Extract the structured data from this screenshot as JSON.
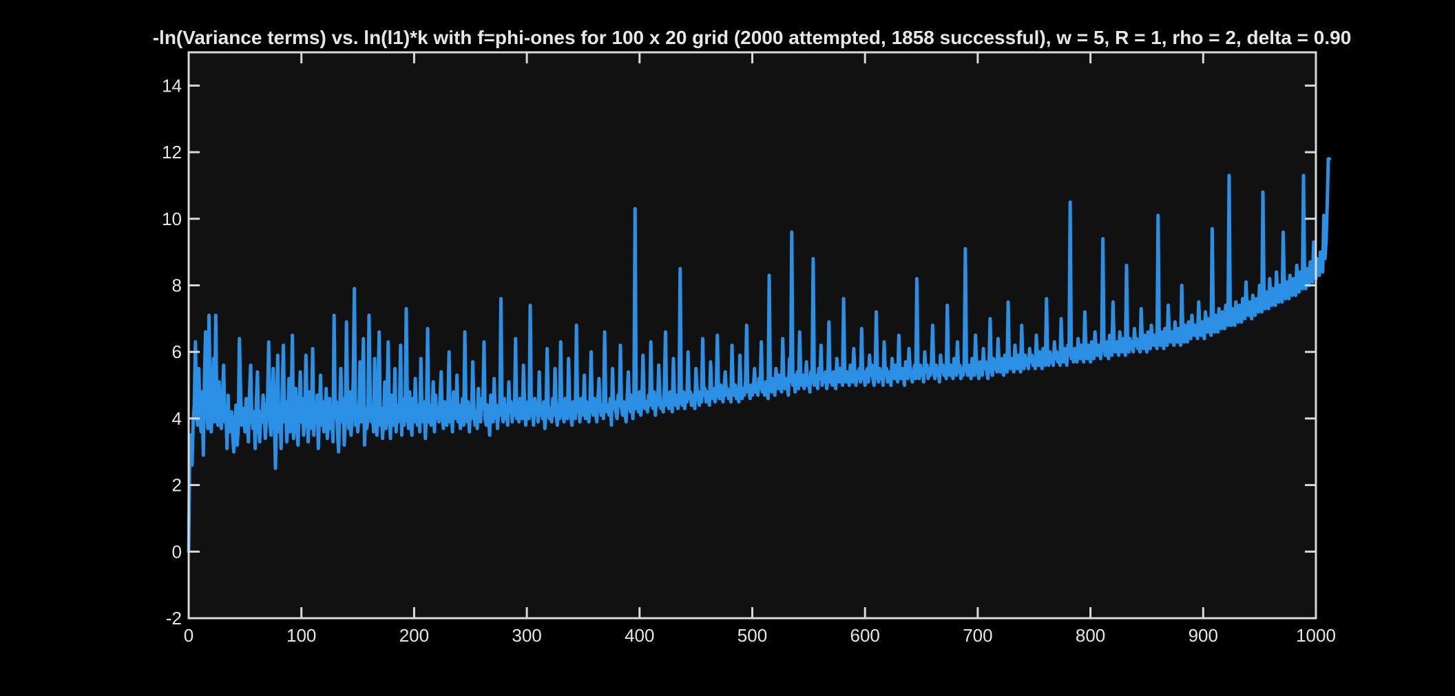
{
  "chart_data": {
    "type": "line",
    "title": "-ln(Variance terms) vs. ln(l1)*k with f=phi-ones for 100 x 20 grid (2000 attempted, 1858 successful), w = 5, R = 1, rho = 2, delta = 0.90",
    "xlabel": "",
    "ylabel": "",
    "xlim": [
      0,
      1000
    ],
    "ylim": [
      -2,
      15
    ],
    "x_ticks": [
      0,
      100,
      200,
      300,
      400,
      500,
      600,
      700,
      800,
      900,
      1000
    ],
    "y_ticks": [
      -2,
      0,
      2,
      4,
      6,
      8,
      10,
      12,
      14
    ],
    "grid": false,
    "legend": "none",
    "colors": {
      "page_background": "#000000",
      "plot_background": "#111111",
      "axes": "#d9d9d9",
      "text": "#e6e6e6",
      "series": "#2b8fe3"
    },
    "series": [
      {
        "name": "",
        "x_start": 0,
        "x_step": 1,
        "note": "",
        "values": [
          0.0,
          3.2,
          3.5,
          2.6,
          3.9,
          4.4,
          6.3,
          4.1,
          3.8,
          5.5,
          4.0,
          3.6,
          4.8,
          2.9,
          5.2,
          6.6,
          4.3,
          3.7,
          7.1,
          4.9,
          3.6,
          4.4,
          5.8,
          3.9,
          7.1,
          4.2,
          3.8,
          5.1,
          4.0,
          3.7,
          4.6,
          5.6,
          3.9,
          4.3,
          3.1,
          4.7,
          3.6,
          3.9,
          4.2,
          3.5,
          3.0,
          3.9,
          4.4,
          3.2,
          3.7,
          6.4,
          4.9,
          3.8,
          4.3,
          4.1,
          3.6,
          4.6,
          3.9,
          3.3,
          4.8,
          5.6,
          4.0,
          3.7,
          4.2,
          3.1,
          4.5,
          5.4,
          3.8,
          3.3,
          4.2,
          3.9,
          4.7,
          4.3,
          3.4,
          4.0,
          4.6,
          6.3,
          3.9,
          3.5,
          4.4,
          5.5,
          4.1,
          2.5,
          4.2,
          5.9,
          3.6,
          4.4,
          3.1,
          4.8,
          6.2,
          3.9,
          4.5,
          3.3,
          4.0,
          5.2,
          3.6,
          4.4,
          6.5,
          3.4,
          4.1,
          4.9,
          3.7,
          3.2,
          4.3,
          5.4,
          3.9,
          4.6,
          3.5,
          4.0,
          5.9,
          4.4,
          3.3,
          4.8,
          3.7,
          4.2,
          6.1,
          3.5,
          4.3,
          3.9,
          4.7,
          3.1,
          4.1,
          5.3,
          3.8,
          4.5,
          3.6,
          4.0,
          4.9,
          3.4,
          3.9,
          4.6,
          3.7,
          4.2,
          3.3,
          7.1,
          4.0,
          4.5,
          3.6,
          3.0,
          4.3,
          5.5,
          3.9,
          4.6,
          3.2,
          4.1,
          6.9,
          4.3,
          3.7,
          4.8,
          3.5,
          4.0,
          5.2,
          7.9,
          3.8,
          4.4,
          3.6,
          4.1,
          5.7,
          3.9,
          4.6,
          6.4,
          3.2,
          4.3,
          3.7,
          4.0,
          7.1,
          4.7,
          3.9,
          4.4,
          3.6,
          5.8,
          4.1,
          3.5,
          4.9,
          6.6,
          3.8,
          4.3,
          3.4,
          4.0,
          5.1,
          3.7,
          4.5,
          6.3,
          4.0,
          3.4,
          4.7,
          3.8,
          4.2,
          5.5,
          3.6,
          4.4,
          3.9,
          4.1,
          6.2,
          3.5,
          4.6,
          3.8,
          4.0,
          7.3,
          4.3,
          3.7,
          4.8,
          4.1,
          3.5,
          4.6,
          3.9,
          5.2,
          4.2,
          3.8,
          4.4,
          3.6,
          5.8,
          4.1,
          3.9,
          4.5,
          3.4,
          4.3,
          6.7,
          3.9,
          4.4,
          3.8,
          4.2,
          5.1,
          3.6,
          4.7,
          4.0,
          4.3,
          3.9,
          4.6,
          5.4,
          4.0,
          3.7,
          4.5,
          4.1,
          3.8,
          4.4,
          6.0,
          3.9,
          4.3,
          3.6,
          4.8,
          4.2,
          4.0,
          5.3,
          3.9,
          4.4,
          3.7,
          4.1,
          4.6,
          3.8,
          6.6,
          4.2,
          3.9,
          4.5,
          3.6,
          4.3,
          4.0,
          5.7,
          4.4,
          3.8,
          4.2,
          3.7,
          4.9,
          4.1,
          3.9,
          4.6,
          4.3,
          6.3,
          4.0,
          3.8,
          4.4,
          4.1,
          3.5,
          4.7,
          4.2,
          3.9,
          5.2,
          4.0,
          4.4,
          3.7,
          4.3,
          4.1,
          7.6,
          4.2,
          3.9,
          4.6,
          4.0,
          4.3,
          3.8,
          5.1,
          4.2,
          4.5,
          3.9,
          4.4,
          4.1,
          6.4,
          4.0,
          4.3,
          3.9,
          4.6,
          4.2,
          4.0,
          5.6,
          4.4,
          3.8,
          4.2,
          4.5,
          4.0,
          7.4,
          4.1,
          4.3,
          3.8,
          4.6,
          4.2,
          4.4,
          3.9,
          5.4,
          4.1,
          4.3,
          4.0,
          4.5,
          3.7,
          4.2,
          6.1,
          4.4,
          4.0,
          4.3,
          3.9,
          4.6,
          4.1,
          5.5,
          4.2,
          3.8,
          4.4,
          4.0,
          6.3,
          4.3,
          4.1,
          3.9,
          4.6,
          4.2,
          4.0,
          5.8,
          4.4,
          4.1,
          3.8,
          4.5,
          4.3,
          4.0,
          6.8,
          4.2,
          4.4,
          3.9,
          4.6,
          4.1,
          4.3,
          5.3,
          4.0,
          4.5,
          4.2,
          3.9,
          4.4,
          6.0,
          4.3,
          4.1,
          4.6,
          4.2,
          3.9,
          4.5,
          5.2,
          4.3,
          4.1,
          4.4,
          4.0,
          6.6,
          4.5,
          4.2,
          4.4,
          4.1,
          4.6,
          3.8,
          5.5,
          4.3,
          4.5,
          4.2,
          4.0,
          4.7,
          4.4,
          6.2,
          4.3,
          4.1,
          4.5,
          4.2,
          3.9,
          4.6,
          5.4,
          4.4,
          4.2,
          4.7,
          4.0,
          4.5,
          10.3,
          4.3,
          4.6,
          4.2,
          4.8,
          4.1,
          4.4,
          5.9,
          4.6,
          4.3,
          4.5,
          4.2,
          4.7,
          4.4,
          6.3,
          4.5,
          4.3,
          4.8,
          4.1,
          4.6,
          4.4,
          5.6,
          4.7,
          4.3,
          4.5,
          4.2,
          4.9,
          6.6,
          4.4,
          4.6,
          4.3,
          4.8,
          4.5,
          4.2,
          5.8,
          4.6,
          4.4,
          4.7,
          4.3,
          4.5,
          8.5,
          4.6,
          4.4,
          4.8,
          4.3,
          4.7,
          4.5,
          6.0,
          4.6,
          4.8,
          4.4,
          4.7,
          4.5,
          4.3,
          5.5,
          4.9,
          4.6,
          4.4,
          4.8,
          4.5,
          6.4,
          4.7,
          4.9,
          4.5,
          4.8,
          4.6,
          4.4,
          5.7,
          4.8,
          4.6,
          4.9,
          4.5,
          4.7,
          6.5,
          4.8,
          4.6,
          5.0,
          4.7,
          4.5,
          4.9,
          5.4,
          4.7,
          4.9,
          4.6,
          4.8,
          4.5,
          6.2,
          4.9,
          4.7,
          5.0,
          4.6,
          4.8,
          4.5,
          5.9,
          4.8,
          4.6,
          4.9,
          4.7,
          5.1,
          6.8,
          4.8,
          4.9,
          4.6,
          5.0,
          4.7,
          4.9,
          5.5,
          4.8,
          5.0,
          4.7,
          5.2,
          4.9,
          6.3,
          4.8,
          5.0,
          4.7,
          5.1,
          4.9,
          4.6,
          8.3,
          5.0,
          4.8,
          5.2,
          4.9,
          4.7,
          5.5,
          5.1,
          4.9,
          5.3,
          5.0,
          4.8,
          6.4,
          5.1,
          4.9,
          5.2,
          5.0,
          4.7,
          5.8,
          5.1,
          9.6,
          5.0,
          5.3,
          4.8,
          5.1,
          5.4,
          4.9,
          6.6,
          5.2,
          5.0,
          5.3,
          4.9,
          5.1,
          5.7,
          5.0,
          5.2,
          4.8,
          5.4,
          5.1,
          8.8,
          5.0,
          5.3,
          5.1,
          4.9,
          5.5,
          5.2,
          6.2,
          5.0,
          5.3,
          5.1,
          5.4,
          4.9,
          5.2,
          6.9,
          5.1,
          5.3,
          5.0,
          5.4,
          5.2,
          4.9,
          5.8,
          5.3,
          5.1,
          5.5,
          5.2,
          5.0,
          7.6,
          5.3,
          5.1,
          5.4,
          5.2,
          5.0,
          5.6,
          5.3,
          5.1,
          6.1,
          5.3,
          5.0,
          5.4,
          5.2,
          5.5,
          5.1,
          6.7,
          5.2,
          5.4,
          5.0,
          5.3,
          5.5,
          5.1,
          5.9,
          5.3,
          5.6,
          5.2,
          5.0,
          5.4,
          7.2,
          5.3,
          5.1,
          5.5,
          5.2,
          5.4,
          5.0,
          6.3,
          5.3,
          5.5,
          5.1,
          5.4,
          5.2,
          5.0,
          5.8,
          5.4,
          5.2,
          5.6,
          5.3,
          5.1,
          6.5,
          5.4,
          5.2,
          5.5,
          5.3,
          5.0,
          5.7,
          5.4,
          5.2,
          6.1,
          5.5,
          5.3,
          5.1,
          5.4,
          5.6,
          5.2,
          8.2,
          5.4,
          5.2,
          5.6,
          5.3,
          5.5,
          5.1,
          6.0,
          5.4,
          5.6,
          5.2,
          5.5,
          5.3,
          5.7,
          6.8,
          5.4,
          5.2,
          5.6,
          5.3,
          5.5,
          5.1,
          5.9,
          5.4,
          5.6,
          5.3,
          5.5,
          5.2,
          7.4,
          5.5,
          5.3,
          5.6,
          5.4,
          5.2,
          5.8,
          5.5,
          5.3,
          6.3,
          5.4,
          5.6,
          5.2,
          5.5,
          5.3,
          5.7,
          9.1,
          5.5,
          5.3,
          5.6,
          5.4,
          5.2,
          5.8,
          5.5,
          5.3,
          6.5,
          5.6,
          5.4,
          5.2,
          5.7,
          5.5,
          5.3,
          6.1,
          5.5,
          5.7,
          5.4,
          5.2,
          5.6,
          7.0,
          5.5,
          5.3,
          5.8,
          5.5,
          5.7,
          5.4,
          6.4,
          5.6,
          5.4,
          5.8,
          5.5,
          5.3,
          5.9,
          5.6,
          5.4,
          7.5,
          5.7,
          5.5,
          5.8,
          5.6,
          5.4,
          6.2,
          5.7,
          5.5,
          5.9,
          5.6,
          5.4,
          6.8,
          5.7,
          5.5,
          5.9,
          5.6,
          5.8,
          5.5,
          6.1,
          5.7,
          5.9,
          5.6,
          5.8,
          5.5,
          6.5,
          5.8,
          5.6,
          6.0,
          5.7,
          5.5,
          6.1,
          5.8,
          5.6,
          7.6,
          5.8,
          5.6,
          6.0,
          5.7,
          5.9,
          5.6,
          6.3,
          5.8,
          6.0,
          5.7,
          5.9,
          5.6,
          7.0,
          5.9,
          5.7,
          6.1,
          5.8,
          5.6,
          6.2,
          5.9,
          10.5,
          5.8,
          6.0,
          5.7,
          6.1,
          5.9,
          5.7,
          6.4,
          6.0,
          5.8,
          6.2,
          5.9,
          5.7,
          7.2,
          6.0,
          5.8,
          6.2,
          5.9,
          5.7,
          6.3,
          6.0,
          5.8,
          6.6,
          6.1,
          5.9,
          6.2,
          6.0,
          5.8,
          6.4,
          9.4,
          6.1,
          5.9,
          6.3,
          6.0,
          5.8,
          6.5,
          6.1,
          5.9,
          7.5,
          6.2,
          6.0,
          6.3,
          6.1,
          5.9,
          6.6,
          6.2,
          6.0,
          6.4,
          6.1,
          5.9,
          8.6,
          6.2,
          6.0,
          6.4,
          6.1,
          6.3,
          6.0,
          6.7,
          6.2,
          6.4,
          6.1,
          6.3,
          6.0,
          7.3,
          6.3,
          6.1,
          6.5,
          6.2,
          6.0,
          6.6,
          6.3,
          6.1,
          6.8,
          6.4,
          6.2,
          6.5,
          6.3,
          6.1,
          10.1,
          6.4,
          6.2,
          6.6,
          6.3,
          6.1,
          6.7,
          6.4,
          6.2,
          7.4,
          6.5,
          6.3,
          6.6,
          6.4,
          6.2,
          6.9,
          6.5,
          6.3,
          6.7,
          6.4,
          6.2,
          8.0,
          6.5,
          6.3,
          6.8,
          6.5,
          6.3,
          6.9,
          6.6,
          6.4,
          7.1,
          6.7,
          6.5,
          6.8,
          6.6,
          6.4,
          7.5,
          6.7,
          6.5,
          6.9,
          6.6,
          6.4,
          7.2,
          6.8,
          6.6,
          7.0,
          6.7,
          6.5,
          9.7,
          6.8,
          6.6,
          7.1,
          6.8,
          6.6,
          7.3,
          6.9,
          6.7,
          7.2,
          6.9,
          6.7,
          7.4,
          7.0,
          6.8,
          11.3,
          7.0,
          6.8,
          7.3,
          7.0,
          6.8,
          7.5,
          7.1,
          6.9,
          7.4,
          7.1,
          6.9,
          7.6,
          7.2,
          7.0,
          8.1,
          7.3,
          7.1,
          7.5,
          7.2,
          7.0,
          7.7,
          7.3,
          7.1,
          7.6,
          7.4,
          7.2,
          8.0,
          7.4,
          7.2,
          10.8,
          7.5,
          7.3,
          7.8,
          7.5,
          7.3,
          8.2,
          7.6,
          7.4,
          7.9,
          7.6,
          7.4,
          8.4,
          7.7,
          7.5,
          8.0,
          7.7,
          7.5,
          9.6,
          7.8,
          7.6,
          8.1,
          7.8,
          7.6,
          8.3,
          7.9,
          7.7,
          8.2,
          7.9,
          7.7,
          8.6,
          8.0,
          7.8,
          8.4,
          8.1,
          7.9,
          11.3,
          8.1,
          7.9,
          8.5,
          8.2,
          8.0,
          8.7,
          8.3,
          8.1,
          9.3,
          8.4,
          8.2,
          8.8,
          8.5,
          8.3,
          9.0,
          8.6,
          8.4,
          10.1,
          8.8,
          9.3,
          10.4,
          11.8,
          11.8
        ]
      }
    ]
  }
}
